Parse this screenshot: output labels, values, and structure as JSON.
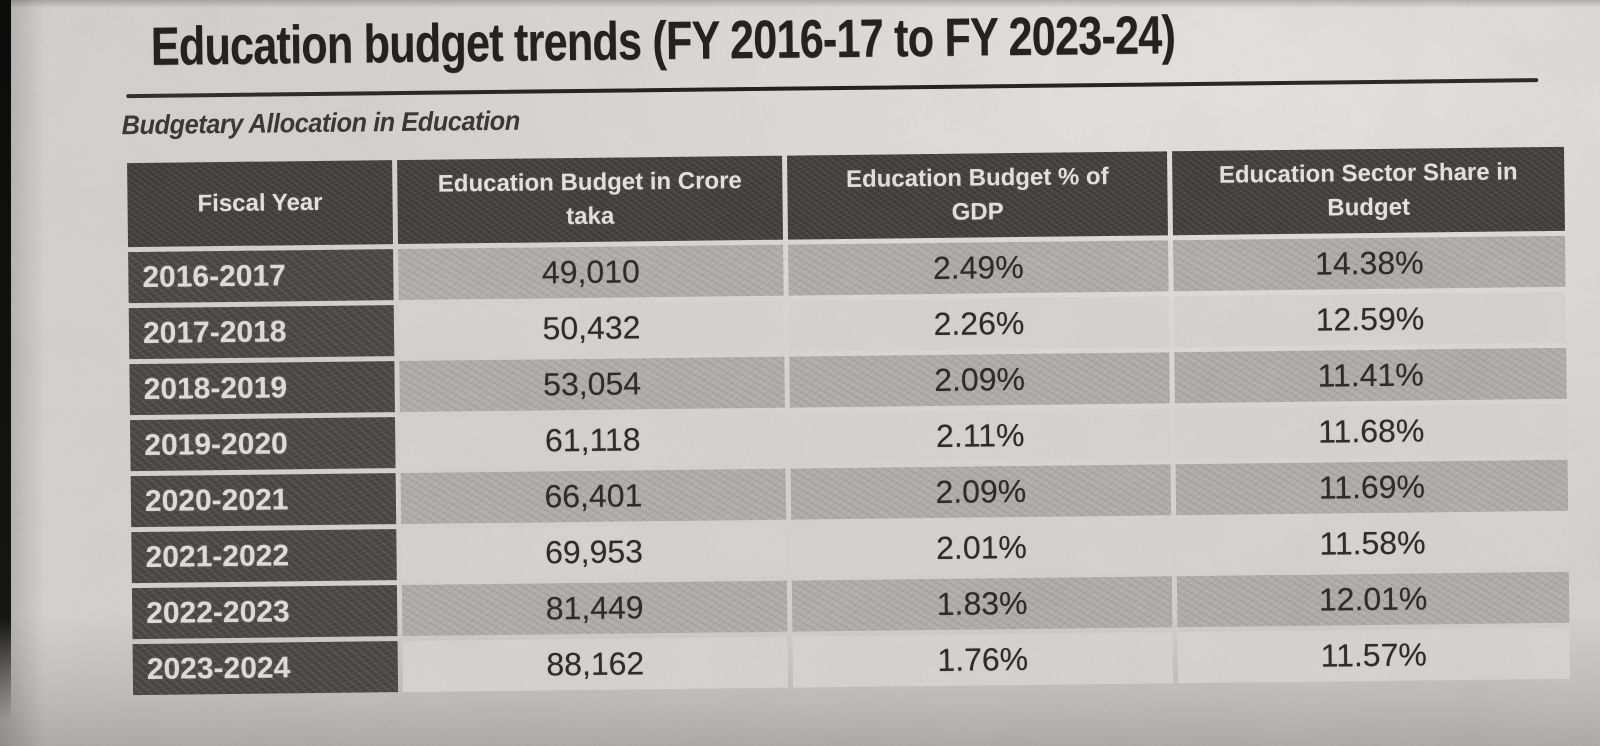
{
  "page": {
    "title": "Education budget trends (FY 2016-17 to FY 2023-24)",
    "subtitle": "Budgetary Allocation in Education"
  },
  "table": {
    "columns": [
      "Fiscal Year",
      "Education Budget in Crore\ntaka",
      "Education Budget % of\nGDP",
      "Education Sector Share in\nBudget"
    ],
    "rows": [
      [
        "2016-2017",
        "49,010",
        "2.49%",
        "14.38%"
      ],
      [
        "2017-2018",
        "50,432",
        "2.26%",
        "12.59%"
      ],
      [
        "2018-2019",
        "53,054",
        "2.09%",
        "11.41%"
      ],
      [
        "2019-2020",
        "61,118",
        "2.11%",
        "11.68%"
      ],
      [
        "2020-2021",
        "66,401",
        "2.09%",
        "11.69%"
      ],
      [
        "2021-2022",
        "69,953",
        "2.01%",
        "11.58%"
      ],
      [
        "2022-2023",
        "81,449",
        "1.83%",
        "12.01%"
      ],
      [
        "2023-2024",
        "88,162",
        "1.76%",
        "11.57%"
      ]
    ]
  },
  "colors": {
    "paper": "#d6d4d1",
    "header_bg": "#434240",
    "year_bg": "#4c4b48",
    "shaded_row": "#b3b1ae",
    "light_row": "#d8d6d3",
    "header_text": "#e7e5e1",
    "body_text": "#2e2d2b"
  }
}
